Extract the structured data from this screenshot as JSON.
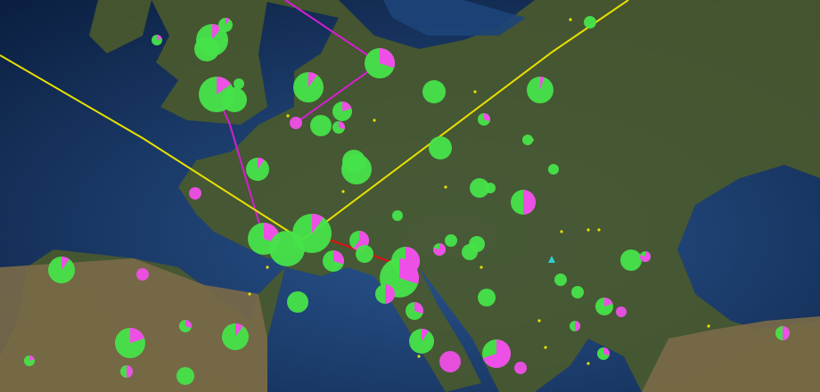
{
  "map": {
    "colors": {
      "ocean_deep": "#0b1f40",
      "ocean": "#1d4479",
      "land": "#4a5a2c",
      "land_dry": "#7a6a48",
      "pie_primary": "#47e34a",
      "pie_secondary": "#ee4fe6",
      "route_magenta": "#d51fd3",
      "route_yellow": "#e8e000",
      "route_red": "#e01010",
      "small_marker": "#e8e000",
      "triangle_marker": "#2fd0d0"
    }
  }
}
